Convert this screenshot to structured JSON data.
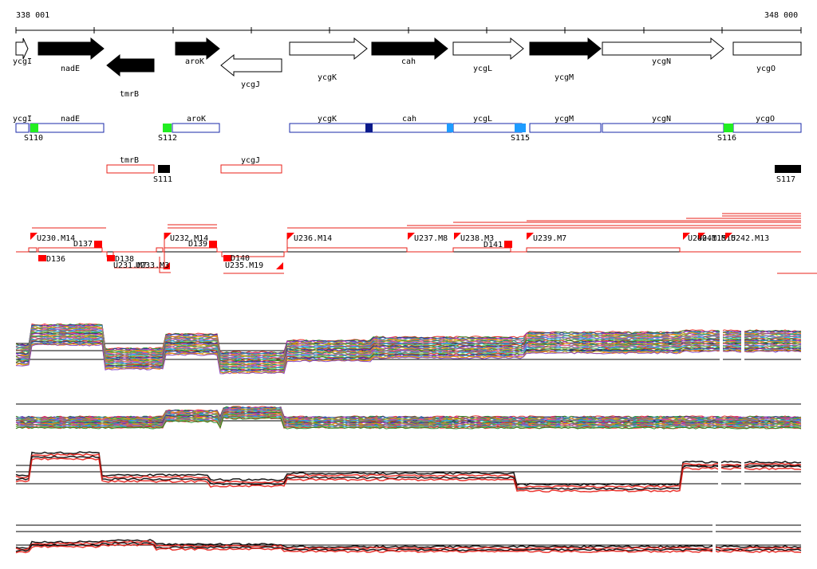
{
  "colors": {
    "ink": "#000000",
    "outline_blue": "#1a2aa8",
    "outline_red": "#e8201a",
    "marker_red": "#ff0000",
    "green": "#22ee22",
    "blue_dark": "#0a1a8a",
    "blue_light": "#1e9cff"
  },
  "ruler": {
    "start_label": "338 001",
    "end_label": "348 000"
  },
  "genes": [
    {
      "name": "ycgI",
      "strand": "+",
      "fill": "white"
    },
    {
      "name": "nadE",
      "strand": "+",
      "fill": "black"
    },
    {
      "name": "tmrB",
      "strand": "-",
      "fill": "black"
    },
    {
      "name": "aroK",
      "strand": "+",
      "fill": "black"
    },
    {
      "name": "ycgJ",
      "strand": "-",
      "fill": "white"
    },
    {
      "name": "ycgK",
      "strand": "+",
      "fill": "white"
    },
    {
      "name": "cah",
      "strand": "+",
      "fill": "black"
    },
    {
      "name": "ycgL",
      "strand": "+",
      "fill": "white"
    },
    {
      "name": "ycgM",
      "strand": "+",
      "fill": "black"
    },
    {
      "name": "ycgN",
      "strand": "+",
      "fill": "white"
    },
    {
      "name": "ycgO",
      "strand": "+",
      "fill": "white"
    }
  ],
  "operon_boxes_top": [
    "ycgI",
    "nadE",
    "aroK",
    "ycgK",
    "cah",
    "ycgL",
    "ycgM",
    "ycgN",
    "ycgO"
  ],
  "operon_boxes_bottom": [
    "tmrB",
    "ycgJ"
  ],
  "sites": [
    "S110",
    "S111",
    "S112",
    "S115",
    "S116",
    "S117"
  ],
  "segments_up": [
    "U230.M14",
    "U232.M14",
    "U236.M14",
    "U237.M8",
    "U238.M3",
    "U239.M7",
    "U240.M15",
    "U241.M15",
    "U242.M13"
  ],
  "segments_down": [
    "U231.M7",
    "U233.M3",
    "U235.M19"
  ],
  "down_markers": [
    "D136",
    "D137",
    "D138",
    "D139",
    "D140",
    "D141"
  ]
}
